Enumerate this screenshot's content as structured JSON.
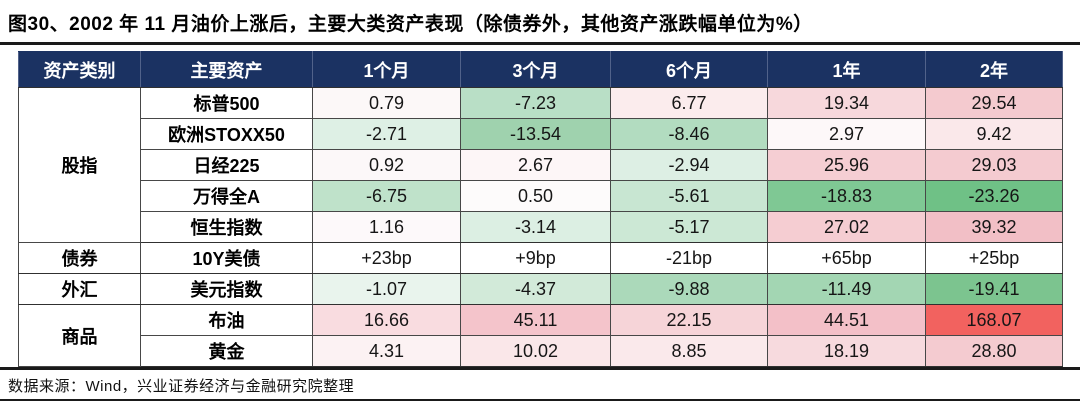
{
  "title": "图30、2002 年 11 月油价上涨后，主要大类资产表现（除债券外，其他资产涨跌幅单位为%）",
  "source_note": "数据来源：Wind，兴业证券经济与金融研究院整理",
  "colors": {
    "header_bg": "#1b3262",
    "header_text": "#ffffff",
    "negative_strong_green": "#6fc186",
    "positive_strong_red": "#f2625f",
    "rule_dark": "#1a1a1a",
    "grid_line": "#474747"
  },
  "chart_data": {
    "type": "table",
    "title": "2002年11月油价上涨后，主要大类资产表现",
    "unit_note": "除债券外，其他资产涨跌幅单位为%",
    "columns": [
      "资产类别",
      "主要资产",
      "1个月",
      "3个月",
      "6个月",
      "1年",
      "2年"
    ],
    "groups": [
      {
        "category": "股指",
        "rows": [
          {
            "asset": "标普500",
            "values": [
              "0.79",
              "-7.23",
              "6.77",
              "19.34",
              "29.54"
            ],
            "cell_colors": [
              "#fcf8f8",
              "#b9dfc6",
              "#fbeced",
              "#f7d8dc",
              "#f4cacf"
            ]
          },
          {
            "asset": "欧洲STOXX50",
            "values": [
              "-2.71",
              "-13.54",
              "-8.46",
              "2.97",
              "9.42"
            ],
            "cell_colors": [
              "#def0e5",
              "#9fd2ae",
              "#b2dcc0",
              "#fdf8f9",
              "#fae8ea"
            ]
          },
          {
            "asset": "日经225",
            "values": [
              "0.92",
              "2.67",
              "-2.94",
              "25.96",
              "29.03"
            ],
            "cell_colors": [
              "#fcf8f9",
              "#fdf6f7",
              "#ddefe4",
              "#f5ced3",
              "#f4cbd0"
            ]
          },
          {
            "asset": "万得全A",
            "values": [
              "-6.75",
              "0.50",
              "-5.61",
              "-18.83",
              "-23.26"
            ],
            "cell_colors": [
              "#bfe2ca",
              "#fdfbfb",
              "#c8e6d2",
              "#7fc894",
              "#6fc186"
            ]
          },
          {
            "asset": "恒生指数",
            "values": [
              "1.16",
              "-3.14",
              "-5.17",
              "27.02",
              "39.32"
            ],
            "cell_colors": [
              "#fdf9fa",
              "#dcefe3",
              "#cce8d5",
              "#f5cdd2",
              "#f2bfc6"
            ]
          }
        ]
      },
      {
        "category": "债券",
        "rows": [
          {
            "asset": "10Y美债",
            "values": [
              "+23bp",
              "+9bp",
              "-21bp",
              "+65bp",
              "+25bp"
            ],
            "cell_colors": [
              "#ffffff",
              "#ffffff",
              "#ffffff",
              "#ffffff",
              "#ffffff"
            ]
          }
        ]
      },
      {
        "category": "外汇",
        "rows": [
          {
            "asset": "美元指数",
            "values": [
              "-1.07",
              "-4.37",
              "-9.88",
              "-11.49",
              "-19.41"
            ],
            "cell_colors": [
              "#e9f4ed",
              "#d2ead9",
              "#abd9ba",
              "#a3d6b3",
              "#7cc48f"
            ]
          }
        ]
      },
      {
        "category": "商品",
        "rows": [
          {
            "asset": "布油",
            "values": [
              "16.66",
              "45.11",
              "22.15",
              "44.51",
              "168.07"
            ],
            "cell_colors": [
              "#f9dce0",
              "#f4c4cb",
              "#f6d4d8",
              "#f3c0c8",
              "#f2625f"
            ]
          },
          {
            "asset": "黄金",
            "values": [
              "4.31",
              "10.02",
              "8.85",
              "18.19",
              "28.80"
            ],
            "cell_colors": [
              "#fcf2f3",
              "#fae7e9",
              "#fae9eb",
              "#f7dade",
              "#f4cbd0"
            ]
          }
        ]
      }
    ]
  }
}
